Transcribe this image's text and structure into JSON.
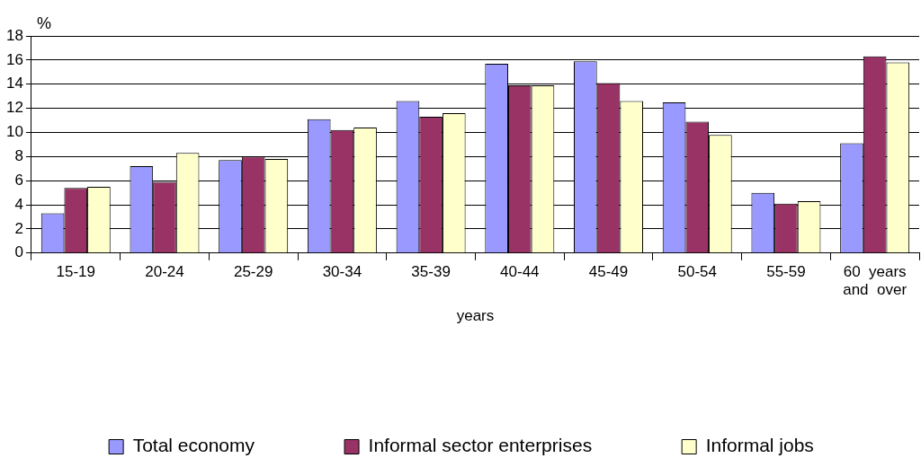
{
  "chart_data": {
    "type": "bar",
    "ylabel": "%",
    "xlabel": "years",
    "categories": [
      "15-19",
      "20-24",
      "25-29",
      "30-34",
      "35-39",
      "40-44",
      "45-49",
      "50-54",
      "55-59",
      "60 years and over"
    ],
    "series": [
      {
        "name": "Total economy",
        "color": "#9999ff",
        "values": [
          3.3,
          7.2,
          7.7,
          11.1,
          12.6,
          15.7,
          15.9,
          12.5,
          5.0,
          9.1
        ]
      },
      {
        "name": "Informal sector enterprises",
        "color": "#993366",
        "values": [
          5.4,
          5.9,
          8.0,
          10.2,
          11.3,
          13.9,
          14.1,
          10.9,
          4.1,
          16.3
        ]
      },
      {
        "name": "Informal jobs",
        "color": "#ffffcc",
        "values": [
          5.5,
          8.3,
          7.8,
          10.4,
          11.6,
          13.9,
          12.6,
          9.8,
          4.3,
          15.8
        ]
      }
    ],
    "ylim": [
      0,
      18
    ],
    "yticks": [
      0,
      2,
      4,
      6,
      8,
      10,
      12,
      14,
      16,
      18
    ],
    "grid": "y",
    "legend": "bottom"
  }
}
